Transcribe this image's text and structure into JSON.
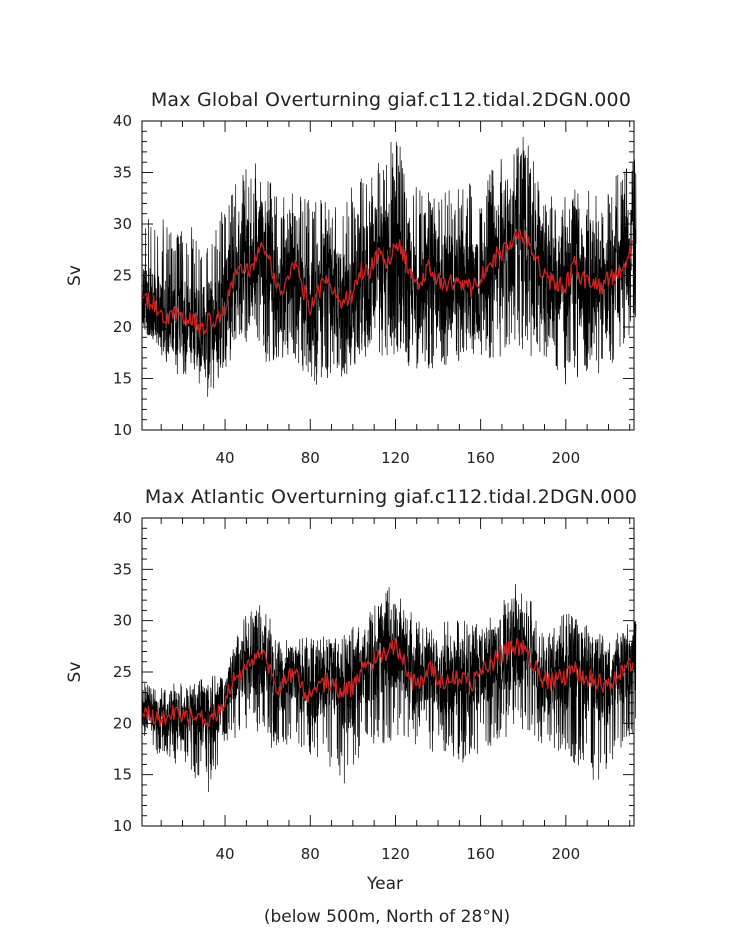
{
  "chart_data": [
    {
      "type": "line",
      "title": "Max Global Overturning giaf.c112.tidal.2DGN.000",
      "xlabel": "",
      "ylabel": "Sv",
      "xlim": [
        1,
        232
      ],
      "ylim": [
        10,
        40
      ],
      "xticks": [
        "40",
        "80",
        "120",
        "160",
        "200"
      ],
      "yticks": [
        "10",
        "15",
        "20",
        "25",
        "30",
        "35",
        "40"
      ],
      "grid": false,
      "series": [
        {
          "kind": "monthly",
          "color": "#000000",
          "smooth": "annual",
          "low_year": [
            [
              1,
              20
            ],
            [
              8,
              18
            ],
            [
              16,
              15.5
            ],
            [
              24,
              15
            ],
            [
              32,
              13
            ],
            [
              40,
              16
            ],
            [
              48,
              18.5
            ],
            [
              56,
              17
            ],
            [
              64,
              16
            ],
            [
              72,
              17
            ],
            [
              80,
              14
            ],
            [
              88,
              15
            ],
            [
              96,
              15
            ],
            [
              104,
              16
            ],
            [
              112,
              17
            ],
            [
              120,
              17
            ],
            [
              128,
              16
            ],
            [
              136,
              16
            ],
            [
              144,
              16
            ],
            [
              152,
              16
            ],
            [
              160,
              17
            ],
            [
              168,
              17
            ],
            [
              176,
              18
            ],
            [
              184,
              17
            ],
            [
              192,
              16
            ],
            [
              200,
              14
            ],
            [
              208,
              15
            ],
            [
              216,
              15
            ],
            [
              224,
              17
            ],
            [
              232,
              20
            ]
          ],
          "high_year": [
            [
              1,
              32
            ],
            [
              8,
              31
            ],
            [
              16,
              30
            ],
            [
              24,
              30
            ],
            [
              32,
              28
            ],
            [
              40,
              33
            ],
            [
              48,
              35
            ],
            [
              56,
              37
            ],
            [
              64,
              33
            ],
            [
              72,
              33
            ],
            [
              80,
              33
            ],
            [
              88,
              32
            ],
            [
              96,
              33
            ],
            [
              104,
              35
            ],
            [
              112,
              36
            ],
            [
              120,
              39
            ],
            [
              128,
              34
            ],
            [
              136,
              33
            ],
            [
              144,
              34
            ],
            [
              152,
              34
            ],
            [
              160,
              34
            ],
            [
              168,
              36
            ],
            [
              176,
              38
            ],
            [
              184,
              39
            ],
            [
              192,
              33
            ],
            [
              200,
              33
            ],
            [
              208,
              34
            ],
            [
              216,
              33
            ],
            [
              224,
              35
            ],
            [
              232,
              37
            ]
          ]
        },
        {
          "kind": "annual-mean",
          "color": "#cc2222",
          "x": [
            1,
            4,
            8,
            12,
            16,
            20,
            24,
            28,
            32,
            36,
            40,
            44,
            48,
            52,
            56,
            60,
            64,
            68,
            72,
            76,
            80,
            84,
            88,
            92,
            96,
            100,
            104,
            108,
            112,
            116,
            120,
            124,
            128,
            132,
            136,
            140,
            144,
            148,
            152,
            156,
            160,
            164,
            168,
            172,
            176,
            180,
            184,
            188,
            192,
            196,
            200,
            204,
            208,
            212,
            216,
            220,
            224,
            228,
            232
          ],
          "values": [
            23,
            22.5,
            22,
            21,
            21.5,
            20.5,
            21,
            19.5,
            20.5,
            20.5,
            21.5,
            25,
            26,
            25.5,
            27.5,
            27,
            24,
            24,
            26.5,
            24,
            22,
            23.5,
            25,
            23,
            22.5,
            23,
            25.5,
            25.5,
            27,
            26,
            28.5,
            27,
            24.5,
            24,
            26,
            24.5,
            24,
            24.5,
            24.5,
            23.5,
            25,
            26,
            27,
            27.5,
            28.5,
            29,
            27.5,
            25.5,
            24.5,
            24,
            24,
            26,
            24.5,
            24.5,
            24,
            24.5,
            25.5,
            26,
            28
          ]
        }
      ]
    },
    {
      "type": "line",
      "title": "Max Atlantic Overturning giaf.c112.tidal.2DGN.000",
      "xlabel": "Year",
      "ylabel": "Sv",
      "xlim": [
        1,
        232
      ],
      "ylim": [
        10,
        40
      ],
      "xticks": [
        "40",
        "80",
        "120",
        "160",
        "200"
      ],
      "yticks": [
        "10",
        "15",
        "20",
        "25",
        "30",
        "35",
        "40"
      ],
      "grid": false,
      "series": [
        {
          "kind": "monthly",
          "color": "#000000",
          "smooth": "annual",
          "low_year": [
            [
              1,
              19
            ],
            [
              8,
              17
            ],
            [
              16,
              16
            ],
            [
              24,
              15
            ],
            [
              32,
              13
            ],
            [
              40,
              18
            ],
            [
              48,
              19
            ],
            [
              56,
              19
            ],
            [
              64,
              17
            ],
            [
              72,
              18
            ],
            [
              80,
              17
            ],
            [
              88,
              16
            ],
            [
              96,
              14
            ],
            [
              104,
              17
            ],
            [
              112,
              18
            ],
            [
              120,
              18
            ],
            [
              128,
              18
            ],
            [
              136,
              17
            ],
            [
              144,
              17
            ],
            [
              152,
              16
            ],
            [
              160,
              17
            ],
            [
              168,
              18
            ],
            [
              176,
              19
            ],
            [
              184,
              19
            ],
            [
              192,
              17
            ],
            [
              200,
              17
            ],
            [
              208,
              15
            ],
            [
              216,
              14
            ],
            [
              224,
              17
            ],
            [
              232,
              19
            ]
          ],
          "high_year": [
            [
              1,
              24
            ],
            [
              8,
              23.5
            ],
            [
              16,
              24
            ],
            [
              24,
              24
            ],
            [
              32,
              24.5
            ],
            [
              40,
              25
            ],
            [
              48,
              30
            ],
            [
              56,
              32.5
            ],
            [
              64,
              29
            ],
            [
              72,
              28
            ],
            [
              80,
              28.5
            ],
            [
              88,
              29
            ],
            [
              96,
              29
            ],
            [
              104,
              30
            ],
            [
              112,
              32
            ],
            [
              120,
              34
            ],
            [
              128,
              31
            ],
            [
              136,
              29
            ],
            [
              144,
              30
            ],
            [
              152,
              30
            ],
            [
              160,
              30
            ],
            [
              168,
              31
            ],
            [
              176,
              34
            ],
            [
              184,
              32
            ],
            [
              192,
              29
            ],
            [
              200,
              31
            ],
            [
              208,
              30
            ],
            [
              216,
              29
            ],
            [
              224,
              29
            ],
            [
              232,
              30
            ]
          ]
        },
        {
          "kind": "annual-mean",
          "color": "#cc2222",
          "x": [
            1,
            4,
            8,
            12,
            16,
            20,
            24,
            28,
            32,
            36,
            40,
            44,
            48,
            52,
            56,
            60,
            64,
            68,
            72,
            76,
            80,
            84,
            88,
            92,
            96,
            100,
            104,
            108,
            112,
            116,
            120,
            124,
            128,
            132,
            136,
            140,
            144,
            148,
            152,
            156,
            160,
            164,
            168,
            172,
            176,
            180,
            184,
            188,
            192,
            196,
            200,
            204,
            208,
            212,
            216,
            220,
            224,
            228,
            232
          ],
          "values": [
            21,
            21,
            20.5,
            20.5,
            21,
            20.5,
            20.5,
            20.5,
            20.5,
            21,
            22,
            24.5,
            25,
            25.5,
            26.5,
            26,
            23.5,
            24,
            25,
            23.5,
            22.5,
            23.5,
            24,
            23.5,
            23,
            23.5,
            25,
            25.5,
            26.5,
            27,
            27.5,
            26,
            24,
            24,
            25.5,
            24.5,
            24,
            24.5,
            24.5,
            24,
            25,
            25.5,
            26.5,
            27,
            27.5,
            27.5,
            26,
            24.5,
            24,
            24.5,
            24.5,
            25.5,
            24.5,
            24.5,
            24,
            23.5,
            24.5,
            25.5,
            26
          ]
        }
      ]
    }
  ],
  "footnote": "(below 500m, North of 28°N)"
}
